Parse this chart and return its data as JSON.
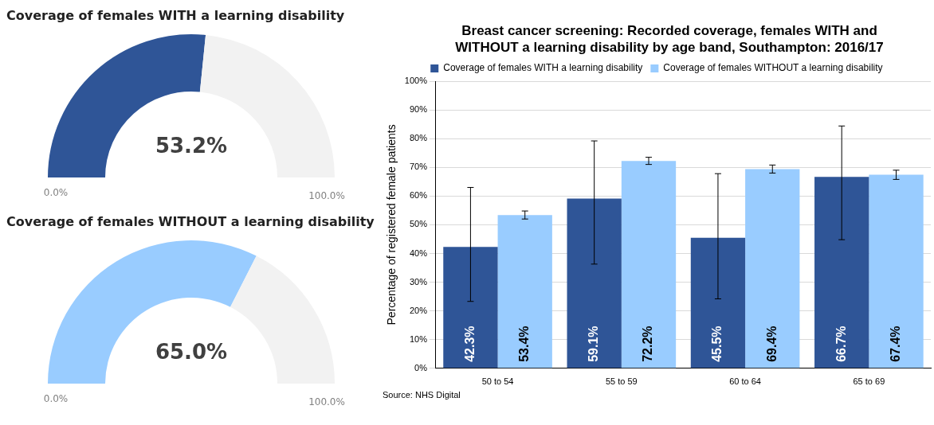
{
  "chart_data": [
    {
      "type": "donut",
      "title": "Coverage of females WITH a learning disability",
      "categories": [
        null,
        null
      ],
      "values": [
        53.2,
        46.8
      ],
      "colors": [
        "#2f5597",
        "#f2f2f2"
      ],
      "value_labels": [
        "53.2%",
        null
      ],
      "annotations": [
        "0.0%",
        "100.0%"
      ]
    },
    {
      "type": "donut",
      "title": "Coverage of females WITHOUT a learning disability",
      "categories": [
        null,
        null
      ],
      "values": [
        65.0,
        35.0
      ],
      "colors": [
        "#99ccff",
        "#f2f2f2"
      ],
      "value_labels": [
        "65.0%",
        null
      ],
      "annotations": [
        "0.0%",
        "100.0%"
      ]
    },
    {
      "type": "bar",
      "title": "Breast cancer screening: Recorded coverage, females WITH and WITHOUT a learning disability by age band, Southampton: 2016/17",
      "ylabel": "Percentage of registered female patients",
      "categories": [
        "50 to 54",
        "55 to 59",
        "60 to 64",
        "65 to 69"
      ],
      "series": [
        {
          "name": "Coverage of females WITH a learning disability",
          "color": "#2f5597",
          "values": [
            42.3,
            59.1,
            45.5,
            66.7
          ],
          "value_labels": [
            "42.3%",
            "59.1%",
            "45.5%",
            "66.7%"
          ],
          "errors": [
            [
              23.3,
              63.0
            ],
            [
              36.3,
              79.2
            ],
            [
              24.2,
              67.8
            ],
            [
              44.8,
              84.4
            ]
          ]
        },
        {
          "name": "Coverage of females WITHOUT a learning disability",
          "color": "#99ccff",
          "values": [
            53.4,
            72.2,
            69.4,
            67.4
          ],
          "value_labels": [
            "53.4%",
            "72.2%",
            "69.4%",
            "67.4%"
          ],
          "errors": [
            [
              52.0,
              54.8
            ],
            [
              71.0,
              73.5
            ],
            [
              68.0,
              70.8
            ],
            [
              65.8,
              69.0
            ]
          ]
        }
      ],
      "ylim": [
        0,
        100
      ],
      "yticks": [
        {
          "value": 0,
          "label": "0%"
        },
        {
          "value": 10,
          "label": "10%"
        },
        {
          "value": 20,
          "label": "20%"
        },
        {
          "value": 30,
          "label": "30%"
        },
        {
          "value": 40,
          "label": "40%"
        },
        {
          "value": 50,
          "label": "50%"
        },
        {
          "value": 60,
          "label": "60%"
        },
        {
          "value": 70,
          "label": "70%"
        },
        {
          "value": 80,
          "label": "80%"
        },
        {
          "value": 90,
          "label": "90%"
        },
        {
          "value": 100,
          "label": "100%"
        }
      ],
      "grid": "y",
      "legend": "top",
      "annotations": [
        "Source: NHS Digital"
      ]
    }
  ]
}
